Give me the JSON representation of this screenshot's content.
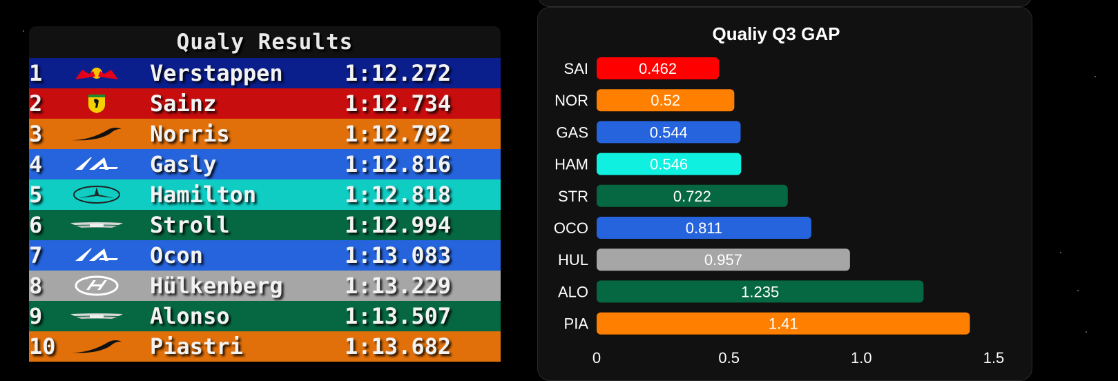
{
  "results": {
    "title": "Qualy Results",
    "rows": [
      {
        "pos": "1",
        "driver": "Verstappen",
        "time": "1:12.272",
        "color": "#0a1e8c",
        "logo": "redbull-logo-icon"
      },
      {
        "pos": "2",
        "driver": "Sainz",
        "time": "1:12.734",
        "color": "#c70d0d",
        "logo": "ferrari-logo-icon"
      },
      {
        "pos": "3",
        "driver": "Norris",
        "time": "1:12.792",
        "color": "#e1700a",
        "logo": "mclaren-logo-icon"
      },
      {
        "pos": "4",
        "driver": "Gasly",
        "time": "1:12.816",
        "color": "#2564dc",
        "logo": "alpine-logo-icon"
      },
      {
        "pos": "5",
        "driver": "Hamilton",
        "time": "1:12.818",
        "color": "#0fcdc3",
        "logo": "mercedes-logo-icon"
      },
      {
        "pos": "6",
        "driver": "Stroll",
        "time": "1:12.994",
        "color": "#066842",
        "logo": "astonmartin-logo-icon"
      },
      {
        "pos": "7",
        "driver": "Ocon",
        "time": "1:13.083",
        "color": "#2564dc",
        "logo": "alpine-logo-icon"
      },
      {
        "pos": "8",
        "driver": "Hülkenberg",
        "time": "1:13.229",
        "color": "#a6a6a6",
        "logo": "haas-logo-icon"
      },
      {
        "pos": "9",
        "driver": "Alonso",
        "time": "1:13.507",
        "color": "#066842",
        "logo": "astonmartin-logo-icon"
      },
      {
        "pos": "10",
        "driver": "Piastri",
        "time": "1:13.682",
        "color": "#e1700a",
        "logo": "mclaren-logo-icon"
      }
    ]
  },
  "chart_data": {
    "type": "bar",
    "orientation": "horizontal",
    "title": "Qualiy Q3 GAP",
    "categories": [
      "SAI",
      "NOR",
      "GAS",
      "HAM",
      "STR",
      "OCO",
      "HUL",
      "ALO",
      "PIA"
    ],
    "values": [
      0.462,
      0.52,
      0.544,
      0.546,
      0.722,
      0.811,
      0.957,
      1.235,
      1.41
    ],
    "value_labels": [
      "0.462",
      "0.52",
      "0.544",
      "0.546",
      "0.722",
      "0.811",
      "0.957",
      "1.235",
      "1.41"
    ],
    "colors": [
      "#ff0000",
      "#ff8000",
      "#2564dc",
      "#0ff0e0",
      "#066842",
      "#2564dc",
      "#a6a6a6",
      "#066842",
      "#ff8000"
    ],
    "xlim": [
      0,
      1.5
    ],
    "xticks": [
      "0",
      "0.5",
      "1.0",
      "1.5"
    ],
    "xlabel": "",
    "ylabel": "",
    "grid": false,
    "legend": "none"
  }
}
